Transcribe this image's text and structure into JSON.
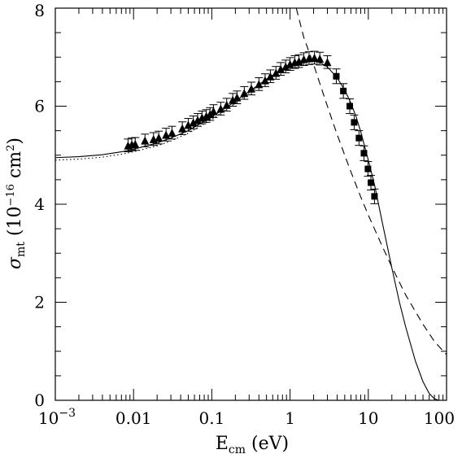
{
  "chart_data": {
    "type": "scatter",
    "xscale": "log",
    "xlim": [
      0.001,
      100
    ],
    "ylim": [
      0,
      8
    ],
    "x_major_ticks": [
      0.001,
      0.01,
      0.1,
      1,
      10,
      100
    ],
    "x_tick_labels": {
      "base": "10",
      "exp": "−3",
      "rest": [
        "0.01",
        "0.1",
        "1",
        "10",
        "100"
      ]
    },
    "y_major_ticks": [
      0,
      2,
      4,
      6,
      8
    ],
    "y_tick_labels": [
      "0",
      "2",
      "4",
      "6",
      "8"
    ],
    "xlabel": {
      "main": "E",
      "sub": "cm",
      "unit": " (eV)"
    },
    "ylabel": {
      "main": "σ",
      "sub": "mt",
      "unit_open": " (10",
      "exp": "−16",
      "unit_mid": " cm",
      "exp2": "2",
      "unit_close": ")"
    },
    "series": [
      {
        "marker": "triangle",
        "points": [
          [
            0.0085,
            5.2,
            0.13
          ],
          [
            0.0095,
            5.22,
            0.13
          ],
          [
            0.0105,
            5.23,
            0.13
          ],
          [
            0.014,
            5.3,
            0.13
          ],
          [
            0.018,
            5.33,
            0.13
          ],
          [
            0.021,
            5.36,
            0.13
          ],
          [
            0.026,
            5.42,
            0.13
          ],
          [
            0.031,
            5.46,
            0.13
          ],
          [
            0.042,
            5.55,
            0.13
          ],
          [
            0.05,
            5.62,
            0.13
          ],
          [
            0.058,
            5.67,
            0.13
          ],
          [
            0.066,
            5.72,
            0.13
          ],
          [
            0.075,
            5.77,
            0.13
          ],
          [
            0.085,
            5.8,
            0.13
          ],
          [
            0.095,
            5.84,
            0.13
          ],
          [
            0.105,
            5.9,
            0.13
          ],
          [
            0.13,
            5.95,
            0.13
          ],
          [
            0.155,
            6.03,
            0.13
          ],
          [
            0.185,
            6.13,
            0.13
          ],
          [
            0.21,
            6.18,
            0.13
          ],
          [
            0.26,
            6.27,
            0.13
          ],
          [
            0.32,
            6.36,
            0.13
          ],
          [
            0.4,
            6.45,
            0.13
          ],
          [
            0.48,
            6.53,
            0.13
          ],
          [
            0.56,
            6.61,
            0.13
          ],
          [
            0.66,
            6.68,
            0.13
          ],
          [
            0.76,
            6.76,
            0.13
          ],
          [
            0.88,
            6.81,
            0.13
          ],
          [
            1.0,
            6.86,
            0.13
          ],
          [
            1.15,
            6.9,
            0.13
          ],
          [
            1.3,
            6.92,
            0.13
          ],
          [
            1.5,
            6.96,
            0.13
          ],
          [
            1.75,
            6.98,
            0.13
          ],
          [
            2.05,
            6.99,
            0.13
          ],
          [
            2.4,
            6.97,
            0.13
          ],
          [
            3.0,
            6.9,
            0.13
          ]
        ]
      },
      {
        "marker": "square",
        "points": [
          [
            3.9,
            6.61,
            0.15
          ],
          [
            4.8,
            6.31,
            0.15
          ],
          [
            5.8,
            6.0,
            0.15
          ],
          [
            6.6,
            5.67,
            0.15
          ],
          [
            7.6,
            5.35,
            0.15
          ],
          [
            8.8,
            5.04,
            0.15
          ],
          [
            9.9,
            4.72,
            0.15
          ],
          [
            10.8,
            4.44,
            0.15
          ],
          [
            12.0,
            4.16,
            0.15
          ]
        ]
      },
      {
        "style": "solid",
        "points": [
          [
            0.001,
            4.95
          ],
          [
            0.002,
            4.97
          ],
          [
            0.004,
            5.01
          ],
          [
            0.007,
            5.07
          ],
          [
            0.01,
            5.12
          ],
          [
            0.02,
            5.25
          ],
          [
            0.03,
            5.35
          ],
          [
            0.05,
            5.5
          ],
          [
            0.1,
            5.78
          ],
          [
            0.2,
            6.1
          ],
          [
            0.3,
            6.3
          ],
          [
            0.5,
            6.55
          ],
          [
            0.7,
            6.7
          ],
          [
            1.0,
            6.83
          ],
          [
            1.5,
            6.91
          ],
          [
            2.0,
            6.92
          ],
          [
            2.5,
            6.88
          ],
          [
            3.0,
            6.8
          ],
          [
            4.0,
            6.58
          ],
          [
            5.0,
            6.33
          ],
          [
            6.0,
            6.06
          ],
          [
            7.0,
            5.78
          ],
          [
            8.0,
            5.48
          ],
          [
            10.0,
            4.9
          ],
          [
            12.0,
            4.4
          ],
          [
            15.0,
            3.65
          ],
          [
            20.0,
            2.7
          ],
          [
            25.0,
            2.0
          ],
          [
            30.0,
            1.5
          ],
          [
            40.0,
            0.8
          ],
          [
            50.0,
            0.38
          ],
          [
            60.0,
            0.14
          ],
          [
            70.0,
            0.03
          ],
          [
            80.0,
            0.0
          ]
        ]
      },
      {
        "style": "dotted",
        "points": [
          [
            0.001,
            4.9
          ],
          [
            0.002,
            4.92
          ],
          [
            0.004,
            4.96
          ],
          [
            0.007,
            5.02
          ],
          [
            0.01,
            5.07
          ],
          [
            0.02,
            5.19
          ],
          [
            0.03,
            5.29
          ],
          [
            0.05,
            5.45
          ],
          [
            0.1,
            5.73
          ],
          [
            0.2,
            6.06
          ],
          [
            0.3,
            6.27
          ],
          [
            0.5,
            6.52
          ],
          [
            0.7,
            6.67
          ],
          [
            1.0,
            6.8
          ],
          [
            1.5,
            6.89
          ],
          [
            2.0,
            6.91
          ]
        ]
      },
      {
        "style": "dashed",
        "points": [
          [
            1.2,
            8.0
          ],
          [
            1.5,
            7.4
          ],
          [
            2.0,
            6.85
          ],
          [
            2.5,
            6.38
          ],
          [
            3.0,
            6.0
          ],
          [
            4.0,
            5.42
          ],
          [
            5.0,
            5.0
          ],
          [
            6.0,
            4.66
          ],
          [
            8.0,
            4.15
          ],
          [
            10.0,
            3.78
          ],
          [
            15.0,
            3.15
          ],
          [
            20.0,
            2.72
          ],
          [
            30.0,
            2.15
          ],
          [
            50.0,
            1.55
          ],
          [
            70.0,
            1.2
          ],
          [
            100.0,
            0.93
          ]
        ]
      }
    ]
  }
}
